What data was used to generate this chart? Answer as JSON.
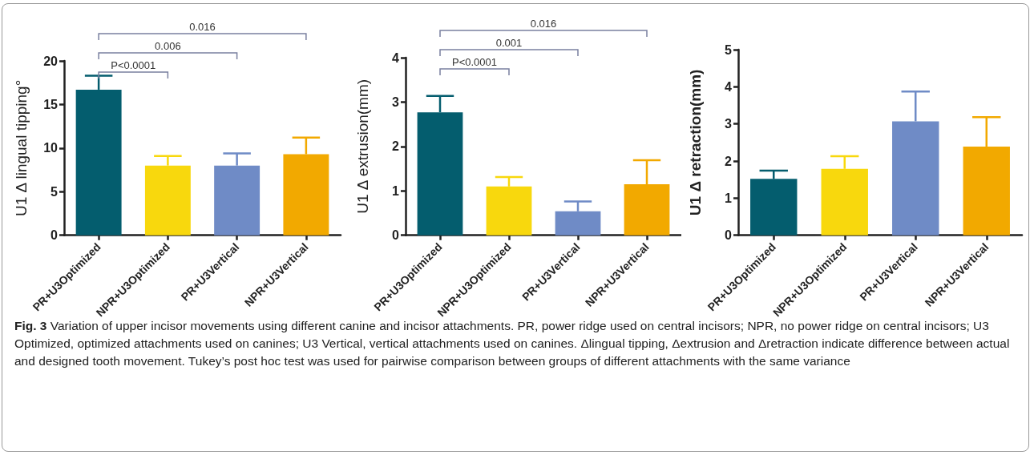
{
  "chart_data": [
    {
      "type": "bar",
      "ylabel": "U1 Δ lingual tipping°",
      "categories": [
        "PR+U3Optimized",
        "NPR+U3Optimized",
        "PR+U3Vertical",
        "NPR+U3Vertical"
      ],
      "values": [
        16.7,
        8.0,
        8.0,
        9.3
      ],
      "colors": [
        "#045d6e",
        "#f8d80d",
        "#6f8bc6",
        "#f2a900"
      ],
      "errors": [
        [
          16.7,
          18.3
        ],
        [
          8.0,
          9.1
        ],
        [
          8.0,
          9.4
        ],
        [
          9.3,
          11.2
        ]
      ],
      "ylim": [
        0,
        20
      ],
      "yticks": [
        0,
        5,
        10,
        15,
        20
      ],
      "grid": false,
      "annotations": [
        "P<0.0001",
        "0.006",
        "0.016"
      ]
    },
    {
      "type": "bar",
      "ylabel": "U1 Δ extrusion(mm)",
      "categories": [
        "PR+U3Optimized",
        "NPR+U3Optimized",
        "PR+U3Vertical",
        "NPR+U3Vertical"
      ],
      "values": [
        2.77,
        1.1,
        0.54,
        1.15
      ],
      "colors": [
        "#045d6e",
        "#f8d80d",
        "#6f8bc6",
        "#f2a900"
      ],
      "errors": [
        [
          2.77,
          3.14
        ],
        [
          1.1,
          1.31
        ],
        [
          0.54,
          0.76
        ],
        [
          1.15,
          1.69
        ]
      ],
      "ylim": [
        0,
        4
      ],
      "yticks": [
        0,
        1,
        2,
        3,
        4
      ],
      "grid": false,
      "annotations": [
        "P<0.0001",
        "0.001",
        "0.016"
      ]
    },
    {
      "type": "bar",
      "ylabel": "U1 Δ retraction(mm)",
      "categories": [
        "PR+U3Optimized",
        "NPR+U3Optimized",
        "PR+U3Vertical",
        "NPR+U3Vertical"
      ],
      "values": [
        1.52,
        1.79,
        3.07,
        2.39
      ],
      "colors": [
        "#045d6e",
        "#f8d80d",
        "#6f8bc6",
        "#f2a900"
      ],
      "errors": [
        [
          1.52,
          1.74
        ],
        [
          1.79,
          2.13
        ],
        [
          3.07,
          3.87
        ],
        [
          2.39,
          3.18
        ]
      ],
      "ylim": [
        0,
        5
      ],
      "yticks": [
        0,
        1,
        2,
        3,
        4,
        5
      ],
      "grid": false,
      "annotations": [
        "Fig. 3  Variation of upper incisor movements using different canine and incisor attachments. PR, power ridge used on central incisors; NPR, no power ridge on central incisors; U3 Optimized, optimized attachments used on canines; U3 Vertical, vertical attachments used on canines. Δlingual tipping, Δextrusion and Δretraction indicate difference between actual and designed tooth movement. Tukey’s post hoc test was used for pairwise comparison between groups of different attachments with the same variance"
      ]
    }
  ]
}
